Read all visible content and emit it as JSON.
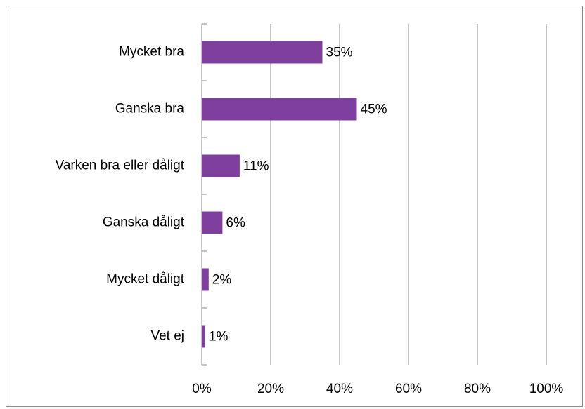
{
  "chart_data": {
    "type": "barh",
    "categories": [
      "Mycket bra",
      "Ganska bra",
      "Varken bra eller dåligt",
      "Ganska dåligt",
      "Mycket dåligt",
      "Vet ej"
    ],
    "values": [
      35,
      45,
      11,
      6,
      2,
      1
    ],
    "value_labels": [
      "35%",
      "45%",
      "11%",
      "6%",
      "2%",
      "1%"
    ],
    "color": "#7e3f9e",
    "xlim": [
      0,
      100
    ],
    "xticks": [
      {
        "value": 0,
        "label": "0%"
      },
      {
        "value": 20,
        "label": "20%"
      },
      {
        "value": 40,
        "label": "40%"
      },
      {
        "value": 60,
        "label": "60%"
      },
      {
        "value": 80,
        "label": "80%"
      },
      {
        "value": 100,
        "label": "100%"
      }
    ],
    "grid": true
  }
}
